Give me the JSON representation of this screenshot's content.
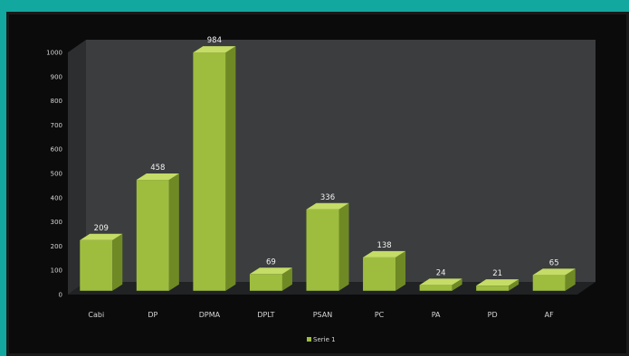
{
  "chart_data": {
    "type": "bar",
    "categories": [
      "Cabi",
      "DP",
      "DPMA",
      "DPLT",
      "PSAN",
      "PC",
      "PA",
      "PD",
      "AF"
    ],
    "series": [
      {
        "name": "Serie 1",
        "values": [
          209,
          458,
          984,
          69,
          336,
          138,
          24,
          21,
          65
        ]
      }
    ],
    "data_labels": [
      "209",
      "458",
      "984",
      "69",
      "336",
      "138",
      "24",
      "21",
      "65"
    ],
    "ylim": [
      0,
      1000
    ],
    "yticks": [
      0,
      100,
      200,
      300,
      400,
      500,
      600,
      700,
      800,
      900,
      1000
    ],
    "title": "",
    "xlabel": "",
    "ylabel": "",
    "grid": false,
    "legend_position": "bottom",
    "style": "3d-column",
    "colors": {
      "bar_front": "#9ebd3f",
      "bar_top": "#c5dc66",
      "bar_side": "#6f8a25",
      "back_wall": "#3b3d3e",
      "side_wall": "#2c2e30",
      "floor": "#202224",
      "frame": "#12a89f",
      "background": "#0b0b0b"
    }
  }
}
